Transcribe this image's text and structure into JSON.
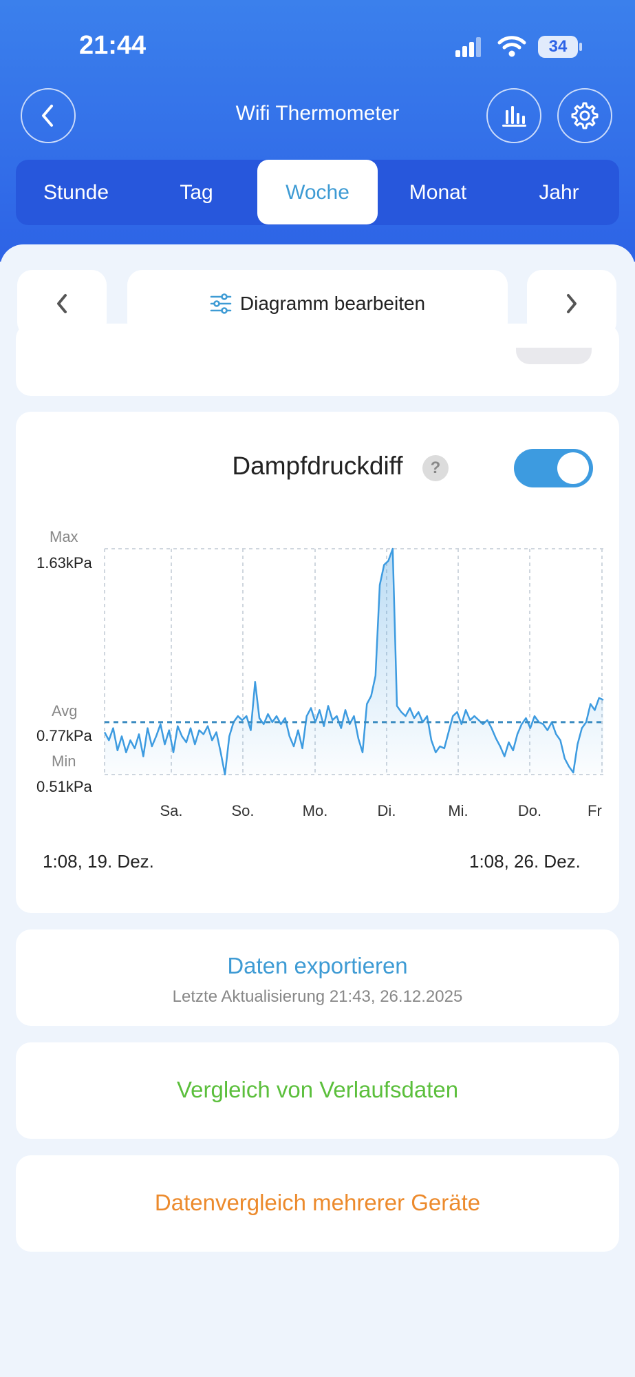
{
  "status_bar": {
    "time": "21:44",
    "battery": "34"
  },
  "header": {
    "title": "Wifi Thermometer"
  },
  "tabs": [
    {
      "label": "Stunde",
      "active": false
    },
    {
      "label": "Tag",
      "active": false
    },
    {
      "label": "Woche",
      "active": true
    },
    {
      "label": "Monat",
      "active": false
    },
    {
      "label": "Jahr",
      "active": false
    }
  ],
  "toolbar": {
    "edit_label": "Diagramm bearbeiten"
  },
  "chart": {
    "title": "Dampfdruckdiff",
    "help": "?",
    "toggle_on": true,
    "max_label": "Max",
    "max_value": "1.63kPa",
    "avg_label": "Avg",
    "avg_value": "0.77kPa",
    "min_label": "Min",
    "min_value": "0.51kPa",
    "range_start": "1:08,  19. Dez.",
    "range_end": "1:08,  26. Dez."
  },
  "chart_data": {
    "type": "area",
    "ylim": [
      0.51,
      1.63
    ],
    "avg": 0.77,
    "x_ticks": [
      "Sa.",
      "So.",
      "Mo.",
      "Di.",
      "Mi.",
      "Do.",
      "Fr"
    ],
    "series": [
      {
        "values": [
          0.72,
          0.68,
          0.74,
          0.63,
          0.7,
          0.62,
          0.68,
          0.64,
          0.71,
          0.6,
          0.74,
          0.65,
          0.7,
          0.76,
          0.66,
          0.73,
          0.62,
          0.75,
          0.7,
          0.67,
          0.74,
          0.66,
          0.73,
          0.71,
          0.75,
          0.68,
          0.72,
          0.62,
          0.51,
          0.7,
          0.77,
          0.8,
          0.78,
          0.8,
          0.73,
          0.97,
          0.79,
          0.76,
          0.81,
          0.77,
          0.8,
          0.76,
          0.79,
          0.7,
          0.65,
          0.73,
          0.64,
          0.8,
          0.84,
          0.77,
          0.83,
          0.75,
          0.85,
          0.78,
          0.8,
          0.74,
          0.83,
          0.76,
          0.8,
          0.69,
          0.62,
          0.86,
          0.9,
          1.0,
          1.45,
          1.55,
          1.57,
          1.63,
          0.85,
          0.82,
          0.8,
          0.84,
          0.79,
          0.82,
          0.77,
          0.8,
          0.68,
          0.62,
          0.65,
          0.64,
          0.72,
          0.8,
          0.82,
          0.76,
          0.83,
          0.78,
          0.8,
          0.78,
          0.76,
          0.78,
          0.74,
          0.69,
          0.65,
          0.6,
          0.67,
          0.63,
          0.71,
          0.76,
          0.79,
          0.74,
          0.8,
          0.77,
          0.76,
          0.73,
          0.77,
          0.71,
          0.68,
          0.59,
          0.55,
          0.52,
          0.66,
          0.74,
          0.77,
          0.86,
          0.83,
          0.89,
          0.88
        ]
      }
    ]
  },
  "actions": {
    "export_title": "Daten exportieren",
    "export_sub": "Letzte Aktualisierung 21:43,  26.12.2025",
    "history_compare": "Vergleich von Verlaufsdaten",
    "multi_device_compare": "Datenvergleich mehrerer Geräte"
  },
  "colors": {
    "header_top": "#3b80ec",
    "header_bottom": "#2d63e6",
    "accent_blue": "#3e9bd4",
    "line_blue": "#3d9be0",
    "green": "#5bbf3c",
    "orange": "#ec8a2c"
  },
  "icons": [
    "back-chevron-icon",
    "bar-chart-icon",
    "gear-icon",
    "prev-chevron-icon",
    "sliders-icon",
    "next-chevron-icon",
    "signal-icon",
    "wifi-icon",
    "battery-icon"
  ]
}
